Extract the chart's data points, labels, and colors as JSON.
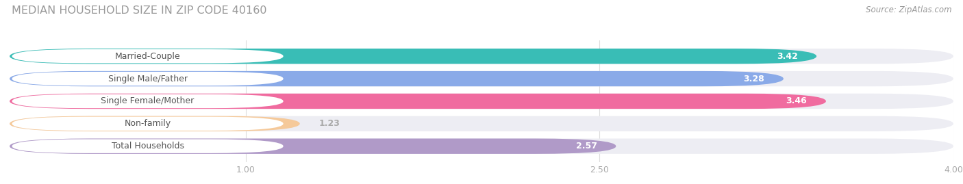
{
  "title": "MEDIAN HOUSEHOLD SIZE IN ZIP CODE 40160",
  "source": "Source: ZipAtlas.com",
  "categories": [
    "Married-Couple",
    "Single Male/Father",
    "Single Female/Mother",
    "Non-family",
    "Total Households"
  ],
  "values": [
    3.42,
    3.28,
    3.46,
    1.23,
    2.57
  ],
  "bar_colors": [
    "#39bdb6",
    "#8aaae8",
    "#f06b9f",
    "#f5c99a",
    "#b09ac8"
  ],
  "label_colors": [
    "#5a9e98",
    "#7090c0",
    "#d05080",
    "#c8906a",
    "#8878a8"
  ],
  "bar_bg_color": "#ededf3",
  "xlim": [
    0,
    4.0
  ],
  "xmin": 0.0,
  "xticks": [
    1.0,
    2.5,
    4.0
  ],
  "xtick_labels": [
    "1.00",
    "2.50",
    "4.00"
  ],
  "title_color": "#999999",
  "source_color": "#999999",
  "bar_height": 0.68,
  "label_bg_color": "#ffffff",
  "threshold": 1.8,
  "value_inside_color": "#ffffff",
  "value_outside_color": "#aaaaaa"
}
